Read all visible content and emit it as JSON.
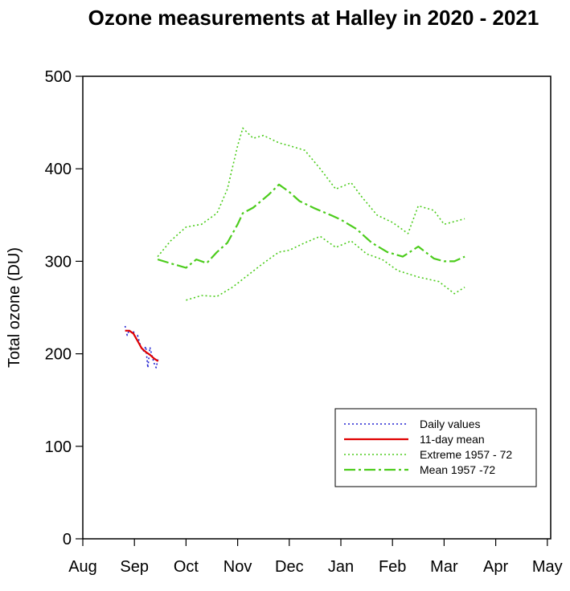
{
  "chart_data": {
    "type": "line",
    "title": "Ozone measurements at Halley in 2020 - 2021",
    "ylabel": "Total ozone (DU)",
    "xlabel": "",
    "ylim": [
      0,
      500
    ],
    "yticks": [
      0,
      100,
      200,
      300,
      400,
      500
    ],
    "xticks": [
      "Aug",
      "Sep",
      "Oct",
      "Nov",
      "Dec",
      "Jan",
      "Feb",
      "Mar",
      "Apr",
      "May"
    ],
    "x_unit": "months from 1 Aug 2020",
    "grid": false,
    "legend_position": "bottom-right",
    "series": [
      {
        "name": "Daily values",
        "color": "#1f1fd0",
        "style": "dotted",
        "x": [
          0.82,
          0.86,
          0.9,
          0.94,
          0.98,
          1.02,
          1.06,
          1.1,
          1.14,
          1.18,
          1.22,
          1.26,
          1.3,
          1.34,
          1.38,
          1.42,
          1.46
        ],
        "y": [
          230,
          220,
          226,
          222,
          225,
          216,
          220,
          212,
          205,
          203,
          208,
          185,
          207,
          198,
          190,
          185,
          195
        ]
      },
      {
        "name": "11-day mean",
        "color": "#e00000",
        "style": "solid",
        "x": [
          0.82,
          0.9,
          0.98,
          1.06,
          1.14,
          1.22,
          1.3,
          1.38,
          1.46
        ],
        "y": [
          225,
          225,
          222,
          214,
          206,
          202,
          199,
          195,
          192
        ]
      },
      {
        "name": "Extreme 1957 - 72",
        "color": "#4ccc1c",
        "style": "dotted",
        "segments": [
          {
            "x": [
              1.45,
              1.7,
              2.0,
              2.3,
              2.6,
              2.8,
              3.0,
              3.1,
              3.3,
              3.5,
              3.8,
              4.0,
              4.3,
              4.6,
              4.9,
              5.2,
              5.4,
              5.7,
              6.0,
              6.3,
              6.5,
              6.8,
              7.0,
              7.2,
              7.4
            ],
            "y": [
              305,
              322,
              337,
              340,
              352,
              378,
              425,
              444,
              433,
              436,
              428,
              425,
              420,
              400,
              378,
              385,
              370,
              350,
              342,
              330,
              360,
              355,
              340,
              343,
              346
            ]
          },
          {
            "x": [
              2.0,
              2.3,
              2.6,
              2.9,
              3.2,
              3.5,
              3.8,
              4.0,
              4.3,
              4.6,
              4.9,
              5.2,
              5.5,
              5.8,
              6.1,
              6.5,
              6.9,
              7.2,
              7.4
            ],
            "y": [
              258,
              263,
              262,
              272,
              285,
              298,
              310,
              312,
              320,
              327,
              315,
              322,
              308,
              302,
              290,
              283,
              278,
              265,
              272
            ]
          }
        ]
      },
      {
        "name": "Mean 1957 -72",
        "color": "#4ccc1c",
        "style": "dashdot",
        "x": [
          1.45,
          1.75,
          2.0,
          2.2,
          2.4,
          2.6,
          2.8,
          3.0,
          3.1,
          3.3,
          3.6,
          3.8,
          4.0,
          4.2,
          4.5,
          4.8,
          5.0,
          5.3,
          5.6,
          5.9,
          6.2,
          6.5,
          6.8,
          7.0,
          7.2,
          7.4
        ],
        "y": [
          302,
          297,
          293,
          302,
          298,
          310,
          320,
          340,
          352,
          358,
          372,
          383,
          375,
          365,
          357,
          350,
          345,
          335,
          320,
          310,
          305,
          316,
          303,
          300,
          300,
          305
        ]
      }
    ]
  }
}
